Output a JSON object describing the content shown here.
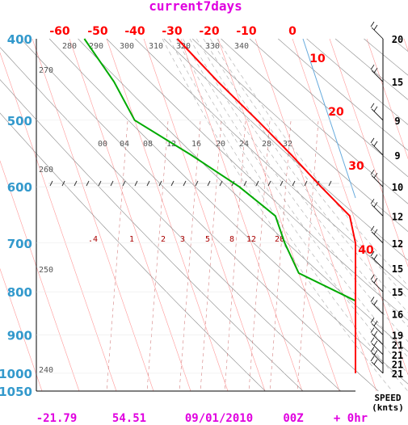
{
  "title": "current7days",
  "footer": {
    "lat": "-21.79",
    "lon": "54.51",
    "date": "09/01/2010",
    "hour": "00Z",
    "forecast": "+ 0hr"
  },
  "speed_label_1": "SPEED",
  "speed_label_2": "(knts)",
  "colors": {
    "title": "#e000e0",
    "pressure": "#3399cc",
    "temperature_labels": "#ff0000",
    "temperature_line": "#ff0000",
    "dewpoint_line": "#00aa00",
    "isotherm": "#ff9999",
    "dry_adiabat": "#999999",
    "mixing_ratio": "#999999",
    "theta_labels": "#555555"
  },
  "chart_data": {
    "type": "skew-t",
    "title": "current7days",
    "pressure_levels": [
      400,
      500,
      600,
      700,
      800,
      900,
      1000,
      1050
    ],
    "top_temperature_ticks": [
      "-60",
      "-50",
      "-40",
      "-30",
      "-20",
      "-10",
      "0"
    ],
    "diagonal_temperature_ticks": [
      "10",
      "20",
      "30",
      "40"
    ],
    "theta_labels_top": [
      "280",
      "290",
      "300",
      "310",
      "320",
      "330",
      "340"
    ],
    "theta_labels_left": [
      "270",
      "260",
      "250",
      "240"
    ],
    "mixing_ratio_labels_upper": [
      "00",
      "04",
      "08",
      "12",
      "16",
      "20",
      "24",
      "28",
      "32"
    ],
    "mixing_ratio_labels_lower": [
      ".4",
      "1",
      "2",
      "3",
      "5",
      "8",
      "12",
      "20"
    ],
    "temperature_profile": [
      {
        "p": 1000,
        "t": 22.0
      },
      {
        "p": 970,
        "t": 18.0
      },
      {
        "p": 925,
        "t": 16.0
      },
      {
        "p": 870,
        "t": 15.0
      },
      {
        "p": 850,
        "t": 16.0
      },
      {
        "p": 800,
        "t": 12.0
      },
      {
        "p": 750,
        "t": 8.0
      },
      {
        "p": 700,
        "t": 3.0
      },
      {
        "p": 650,
        "t": -1.0
      },
      {
        "p": 600,
        "t": -6.0
      },
      {
        "p": 550,
        "t": -11.0
      },
      {
        "p": 500,
        "t": -17.0
      },
      {
        "p": 450,
        "t": -24.0
      },
      {
        "p": 400,
        "t": -31.0
      }
    ],
    "dewpoint_profile": [
      {
        "p": 1000,
        "t": 19.0
      },
      {
        "p": 950,
        "t": 17.0
      },
      {
        "p": 900,
        "t": 13.0
      },
      {
        "p": 870,
        "t": 12.0
      },
      {
        "p": 820,
        "t": -3.0
      },
      {
        "p": 760,
        "t": -20.0
      },
      {
        "p": 700,
        "t": -21.0
      },
      {
        "p": 650,
        "t": -21.0
      },
      {
        "p": 600,
        "t": -28.0
      },
      {
        "p": 550,
        "t": -38.0
      },
      {
        "p": 500,
        "t": -50.0
      },
      {
        "p": 450,
        "t": -52.0
      },
      {
        "p": 400,
        "t": -56.0
      }
    ],
    "wind_speeds": [
      {
        "p": 400,
        "speed": "20"
      },
      {
        "p": 450,
        "speed": "15"
      },
      {
        "p": 500,
        "speed": "9"
      },
      {
        "p": 550,
        "speed": "9"
      },
      {
        "p": 600,
        "speed": "10"
      },
      {
        "p": 650,
        "speed": "12"
      },
      {
        "p": 700,
        "speed": "12"
      },
      {
        "p": 750,
        "speed": "15"
      },
      {
        "p": 800,
        "speed": "15"
      },
      {
        "p": 850,
        "speed": "16"
      },
      {
        "p": 900,
        "speed": "19"
      },
      {
        "p": 925,
        "speed": "21"
      },
      {
        "p": 950,
        "speed": "21"
      },
      {
        "p": 975,
        "speed": "21"
      },
      {
        "p": 1000,
        "speed": "21"
      }
    ]
  }
}
